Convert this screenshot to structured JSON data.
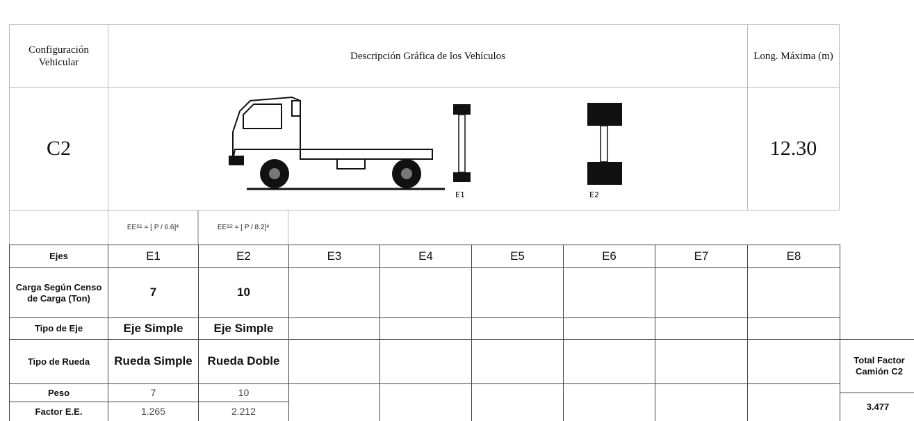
{
  "header": {
    "config_label": "Configuración Vehicular",
    "description_label": "Descripción Gráfica de los Vehículos",
    "length_label": "Long. Máxima (m)",
    "config": "C2",
    "length": "12.30",
    "axle_labels": [
      "E1",
      "E2"
    ]
  },
  "formulas": [
    {
      "base": "EE",
      "sub": "S1",
      "expr": "= [ P / 6.6]",
      "exp": "4"
    },
    {
      "base": "EE",
      "sub": "S2",
      "expr": "= [ P / 8.2]",
      "exp": "4"
    }
  ],
  "table": {
    "axle_header": "Ejes",
    "axles": [
      "E1",
      "E2",
      "E3",
      "E4",
      "E5",
      "E6",
      "E7",
      "E8"
    ],
    "rows": [
      {
        "label": "Carga Según Censo de Carga (Ton)",
        "values": [
          "7",
          "10"
        ]
      },
      {
        "label": "Tipo de Eje",
        "values": [
          "Eje Simple",
          "Eje Simple"
        ]
      },
      {
        "label": "Tipo de Rueda",
        "values": [
          "Rueda Simple",
          "Rueda Doble"
        ]
      },
      {
        "label": "Peso",
        "values": [
          "7",
          "10"
        ]
      },
      {
        "label": "Factor E.E.",
        "values": [
          "1.265",
          "2.212"
        ]
      }
    ]
  },
  "total": {
    "label": "Total Factor Camión C2",
    "value": "3.477"
  }
}
